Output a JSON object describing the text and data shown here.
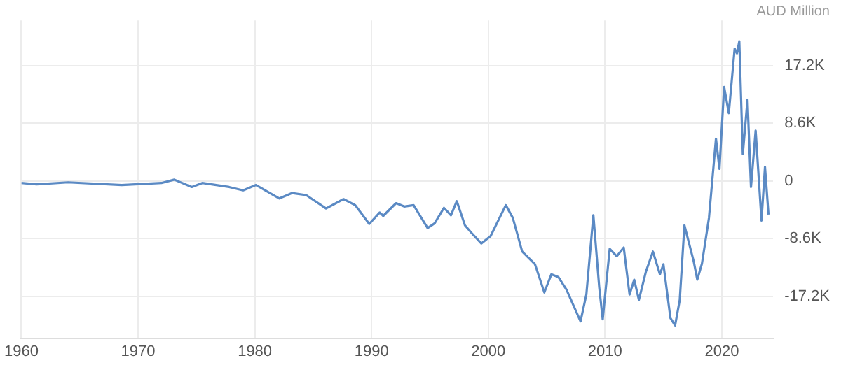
{
  "chart_data": {
    "type": "line",
    "ylabel": "AUD Million",
    "x": [
      1960,
      1961.3,
      1964,
      1968.6,
      1972,
      1973.1,
      1974.6,
      1975.5,
      1977.8,
      1979,
      1980.1,
      1982.1,
      1983.2,
      1984.4,
      1986.1,
      1987.6,
      1988.6,
      1989.8,
      1990.7,
      1991,
      1992.1,
      1992.8,
      1993.6,
      1994.8,
      1995.4,
      1996.2,
      1996.8,
      1997.3,
      1998,
      1998.6,
      1999.4,
      2000.2,
      2001.5,
      2002.1,
      2002.9,
      2004,
      2004.8,
      2005.4,
      2006,
      2006.7,
      2007.9,
      2008.4,
      2009,
      2009.5,
      2009.8,
      2010.4,
      2011,
      2011.6,
      2012.1,
      2012.5,
      2012.9,
      2013.5,
      2014.1,
      2014.7,
      2015,
      2015.6,
      2016,
      2016.4,
      2016.8,
      2017.6,
      2017.9,
      2018.3,
      2018.9,
      2019.5,
      2019.8,
      2020.2,
      2020.6,
      2021.1,
      2021.3,
      2021.5,
      2021.8,
      2022.2,
      2022.5,
      2022.9,
      2023.4,
      2023.7,
      2024
    ],
    "series": [
      {
        "color": "#5b8ac4",
        "values": [
          -300,
          -500,
          -200,
          -600,
          -300,
          200,
          -900,
          -300,
          -900,
          -1400,
          -600,
          -2600,
          -1800,
          -2100,
          -4100,
          -2700,
          -3600,
          -6400,
          -4700,
          -5200,
          -3300,
          -3800,
          -3600,
          -7000,
          -6300,
          -4000,
          -5100,
          -3000,
          -6600,
          -7800,
          -9300,
          -8200,
          -3600,
          -5500,
          -10500,
          -12400,
          -16600,
          -13900,
          -14300,
          -16200,
          -20900,
          -16900,
          -5100,
          -15800,
          -20600,
          -10100,
          -11200,
          -9900,
          -16900,
          -14700,
          -17700,
          -13500,
          -10500,
          -13900,
          -12400,
          -20400,
          -21500,
          -17700,
          -6600,
          -12000,
          -14700,
          -12300,
          -5500,
          6300,
          1800,
          14000,
          10100,
          19700,
          19000,
          20800,
          4000,
          12100,
          -900,
          7500,
          -5900,
          2100,
          -5000
        ]
      }
    ],
    "xlim": [
      1960,
      2024.4
    ],
    "xticks": [
      1960,
      1970,
      1980,
      1990,
      2000,
      2010,
      2020
    ],
    "ylim": [
      -23400,
      23900
    ],
    "yticks": [
      {
        "value": -17200,
        "label": "-17.2K"
      },
      {
        "value": -8600,
        "label": "-8.6K"
      },
      0,
      {
        "value": 8600,
        "label": "8.6K"
      },
      {
        "value": 17200,
        "label": "17.2K"
      }
    ],
    "grid": true,
    "legend": false,
    "marker": "none",
    "line_style": "solid"
  }
}
